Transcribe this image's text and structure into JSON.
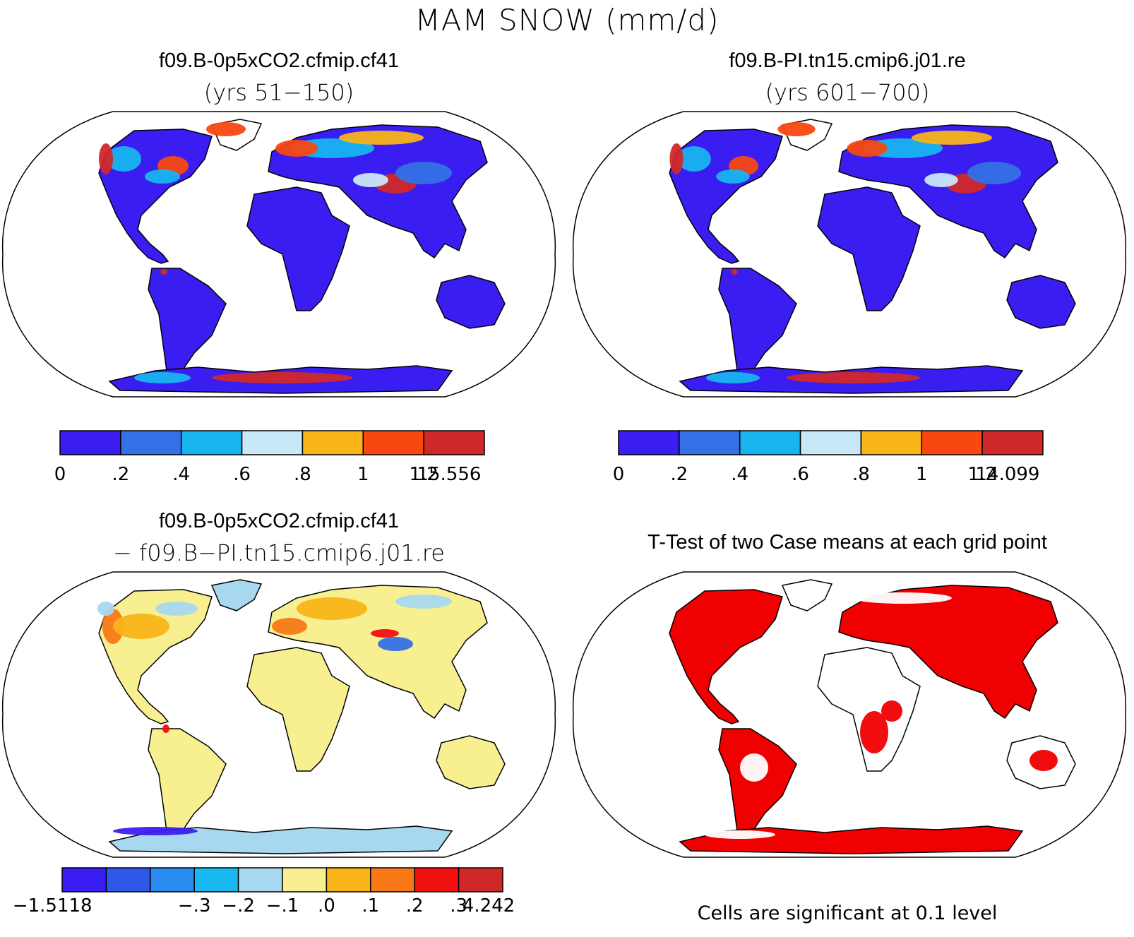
{
  "title": "MAM SNOW (mm/d)",
  "panels": {
    "top_left": {
      "title": "f09.B-0p5xCO2.cfmip.cf41",
      "subtitle": "(yrs 51−150)",
      "colorbar": {
        "colors": [
          "#3a1df0",
          "#3470e6",
          "#18b4f0",
          "#c8e8f8",
          "#f8b418",
          "#f84810",
          "#d02828"
        ],
        "labels": [
          "0",
          ".2",
          ".4",
          ".6",
          ".8",
          "1",
          "1.2",
          "15.556"
        ]
      }
    },
    "top_right": {
      "title": "f09.B-PI.tn15.cmip6.j01.re",
      "subtitle": "(yrs 601−700)",
      "colorbar": {
        "colors": [
          "#3a1df0",
          "#3470e6",
          "#18b4f0",
          "#c8e8f8",
          "#f8b418",
          "#f84810",
          "#d02828"
        ],
        "labels": [
          "0",
          ".2",
          ".4",
          ".6",
          ".8",
          "1",
          "1.2",
          "14.099"
        ]
      }
    },
    "bottom_left": {
      "title": "f09.B-0p5xCO2.cfmip.cf41",
      "subtitle": "− f09.B−PI.tn15.cmip6.j01.re",
      "colorbar": {
        "colors": [
          "#3a1df0",
          "#2e58e8",
          "#2a8cf0",
          "#18b8f0",
          "#a8d8f0",
          "#f8f090",
          "#f8b418",
          "#f87818",
          "#f01010",
          "#d02828"
        ],
        "labels": [
          "−1.5118",
          "−.3",
          "−.2",
          "−.1",
          ".0",
          ".1",
          ".2",
          ".3",
          "4.242"
        ]
      }
    },
    "bottom_right": {
      "title": "T-Test of two Case means at each grid point",
      "note": "Cells are significant at 0.1 level",
      "significant_color": "#f00000"
    }
  }
}
